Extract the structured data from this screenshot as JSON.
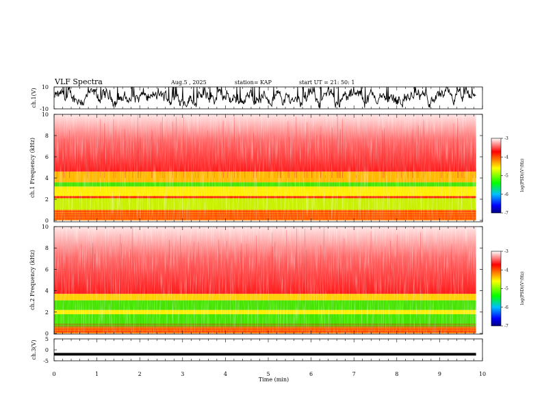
{
  "header": {
    "title": "VLF Spectra",
    "date": "Aug.5 , 2025",
    "station": "station= KAP",
    "start": "start UT = 21: 50: 1"
  },
  "chart_data": [
    {
      "type": "line",
      "panel": "ch1-waveform",
      "ylabel": "ch.1(V)",
      "ylim": [
        -10,
        10
      ],
      "yticks": [
        "10",
        "-10"
      ],
      "xlim": [
        0,
        9.85
      ],
      "note": "dense noisy waveform oscillating mostly between about -6 and +6 V, saturating at +10"
    },
    {
      "type": "heatmap",
      "panel": "ch1-spectrogram",
      "ylabel": "ch.1 Frequency (kHz)",
      "ylim": [
        0,
        10
      ],
      "yticks": [
        "0",
        "2",
        "4",
        "6",
        "8",
        "10"
      ],
      "xlim": [
        0,
        9.85
      ],
      "bands": [
        {
          "f_low": 0.0,
          "f_high": 1.0,
          "level": "orange-red with red lines"
        },
        {
          "f_low": 1.0,
          "f_high": 2.1,
          "level": "yellow-green"
        },
        {
          "f_low": 2.1,
          "f_high": 2.3,
          "level": "red line"
        },
        {
          "f_low": 2.3,
          "f_high": 3.2,
          "level": "yellow"
        },
        {
          "f_low": 3.2,
          "f_high": 3.6,
          "level": "green"
        },
        {
          "f_low": 3.6,
          "f_high": 4.6,
          "level": "orange-yellow"
        },
        {
          "f_low": 4.6,
          "f_high": 10.0,
          "level": "red fading to white"
        }
      ]
    },
    {
      "type": "heatmap",
      "panel": "ch2-spectrogram",
      "ylabel": "ch.2 Frequency (kHz)",
      "ylim": [
        0,
        10
      ],
      "yticks": [
        "0",
        "2",
        "4",
        "6",
        "8",
        "10"
      ],
      "xlim": [
        0,
        9.85
      ],
      "bands": [
        {
          "f_low": 0.0,
          "f_high": 0.6,
          "level": "orange-red"
        },
        {
          "f_low": 0.6,
          "f_high": 1.8,
          "level": "green"
        },
        {
          "f_low": 1.8,
          "f_high": 2.2,
          "level": "yellow"
        },
        {
          "f_low": 2.2,
          "f_high": 3.1,
          "level": "green"
        },
        {
          "f_low": 3.1,
          "f_high": 3.7,
          "level": "yellow-orange"
        },
        {
          "f_low": 3.7,
          "f_high": 10.0,
          "level": "red fading to white"
        }
      ]
    },
    {
      "type": "line",
      "panel": "ch3-waveform",
      "ylabel": "ch.3(V)",
      "ylim": [
        -5,
        5
      ],
      "yticks": [
        "5",
        "0",
        "-5"
      ],
      "xlim": [
        0,
        9.85
      ],
      "note": "nearly constant thick band around -2 V (between about -2.6 and -1.4)"
    }
  ],
  "xaxis": {
    "label": "Time (min)",
    "range": [
      0,
      10
    ],
    "ticks": [
      "0",
      "1",
      "2",
      "3",
      "4",
      "5",
      "6",
      "7",
      "8",
      "9",
      "10"
    ]
  },
  "colorbars": [
    {
      "label": "log(PSD)(V²/Hz)",
      "range": [
        -7,
        -3
      ],
      "ticks": [
        "-3",
        "-4",
        "-5",
        "-6",
        "-7"
      ],
      "colors": [
        "#ffffff",
        "#ff0000",
        "#ffff00",
        "#00ff00",
        "#00bfff",
        "#0000ff",
        "#00007f"
      ]
    },
    {
      "label": "log(PSD)(V²/Hz)",
      "range": [
        -7,
        -3
      ],
      "ticks": [
        "-3",
        "-4",
        "-5",
        "-6",
        "-7"
      ],
      "colors": [
        "#ffffff",
        "#ff0000",
        "#ffff00",
        "#00ff00",
        "#00bfff",
        "#0000ff",
        "#00007f"
      ]
    }
  ]
}
